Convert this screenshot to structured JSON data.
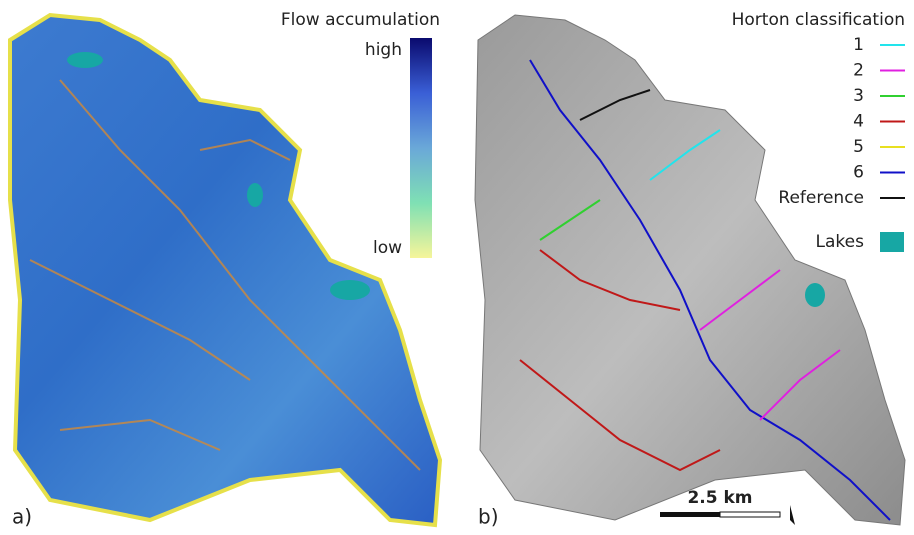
{
  "panel_a": {
    "title": "Flow accumulation",
    "colorbar_high": "high",
    "colorbar_low": "low",
    "colorbar_colors": [
      "#0a0a6e",
      "#3a5fd6",
      "#6aa8d8",
      "#7fe0b4",
      "#f6f59a"
    ],
    "label": "a)"
  },
  "panel_b": {
    "title": "Horton classification",
    "legend": [
      {
        "label": "1",
        "color": "#22e4ec"
      },
      {
        "label": "2",
        "color": "#e020e0"
      },
      {
        "label": "3",
        "color": "#30d030"
      },
      {
        "label": "4",
        "color": "#c01818"
      },
      {
        "label": "5",
        "color": "#e8e020"
      },
      {
        "label": "6",
        "color": "#1010c8"
      },
      {
        "label": "Reference",
        "color": "#111111"
      }
    ],
    "lakes": {
      "label": "Lakes",
      "color": "#17a7a4"
    },
    "scale_bar": "2.5 km",
    "label": "b)"
  }
}
